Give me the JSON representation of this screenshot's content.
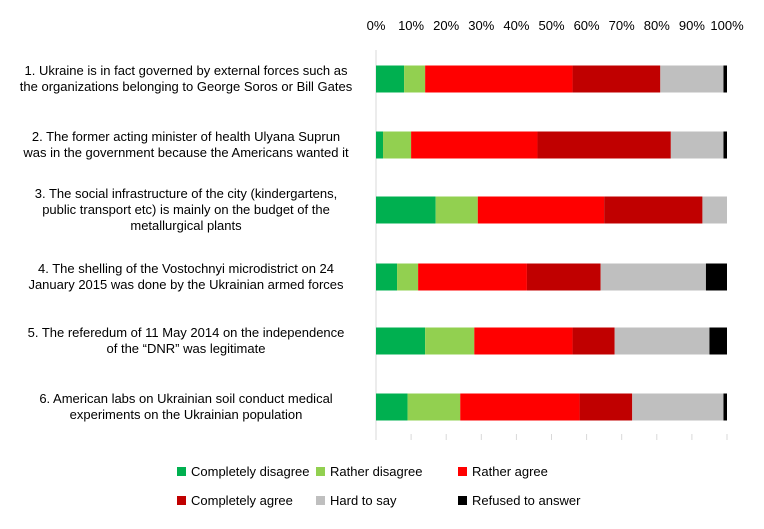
{
  "chart_data": {
    "type": "bar",
    "orientation": "horizontal",
    "stacked": true,
    "percent_stacked": true,
    "categories": [
      "1. Ukraine is in fact governed by external forces such as the organizations belonging to George Soros or Bill Gates",
      "2. The former acting minister of health Ulyana Suprun was in the government because the Americans wanted it",
      "3. The social infrastructure of the city (kindergartens, public transport etc) is mainly on the budget of the metallurgical plants",
      "4. The shelling of the Vostochnyi microdistrict on 24 January 2015 was done by the Ukrainian armed forces",
      "5. The referedum of 11 May 2014 on the independence of the “DNR” was legitimate",
      "6. American labs on Ukrainian soil conduct medical experiments on the Ukrainian population"
    ],
    "category_lines": [
      [
        "1. Ukraine is in fact governed by external forces such as",
        "the organizations belonging to George Soros or Bill Gates"
      ],
      [
        "2. The former acting minister of health Ulyana Suprun",
        "was in the government because the Americans wanted it"
      ],
      [
        "3. The social infrastructure of the city (kindergartens,",
        "public transport etc) is mainly on the budget of the",
        "metallurgical plants"
      ],
      [
        "4. The shelling of the Vostochnyi microdistrict on 24",
        "January 2015 was done by the Ukrainian armed forces"
      ],
      [
        "5. The referedum of 11 May 2014 on the independence",
        "of the “DNR” was legitimate"
      ],
      [
        "6. American labs on Ukrainian soil conduct medical",
        "experiments on the Ukrainian population"
      ]
    ],
    "series": [
      {
        "name": "Completely disagree",
        "color": "#00b050",
        "values": [
          8,
          2,
          17,
          6,
          14,
          9
        ]
      },
      {
        "name": "Rather disagree",
        "color": "#92d050",
        "values": [
          6,
          8,
          12,
          6,
          14,
          15
        ]
      },
      {
        "name": "Rather agree",
        "color": "#ff0000",
        "values": [
          42,
          36,
          36,
          31,
          28,
          34
        ]
      },
      {
        "name": "Completely agree",
        "color": "#c00000",
        "values": [
          25,
          38,
          28,
          21,
          12,
          15
        ]
      },
      {
        "name": "Hard to say",
        "color": "#bfbfbf",
        "values": [
          18,
          15,
          7,
          30,
          27,
          26
        ]
      },
      {
        "name": "Refused to answer",
        "color": "#000000",
        "values": [
          1,
          1,
          0,
          6,
          5,
          1
        ]
      }
    ],
    "x_ticks": [
      "0%",
      "10%",
      "20%",
      "30%",
      "40%",
      "50%",
      "60%",
      "70%",
      "80%",
      "90%",
      "100%"
    ],
    "xlim": [
      0,
      100
    ],
    "xaxis_position": "top",
    "grid": false,
    "legend_position": "bottom"
  }
}
